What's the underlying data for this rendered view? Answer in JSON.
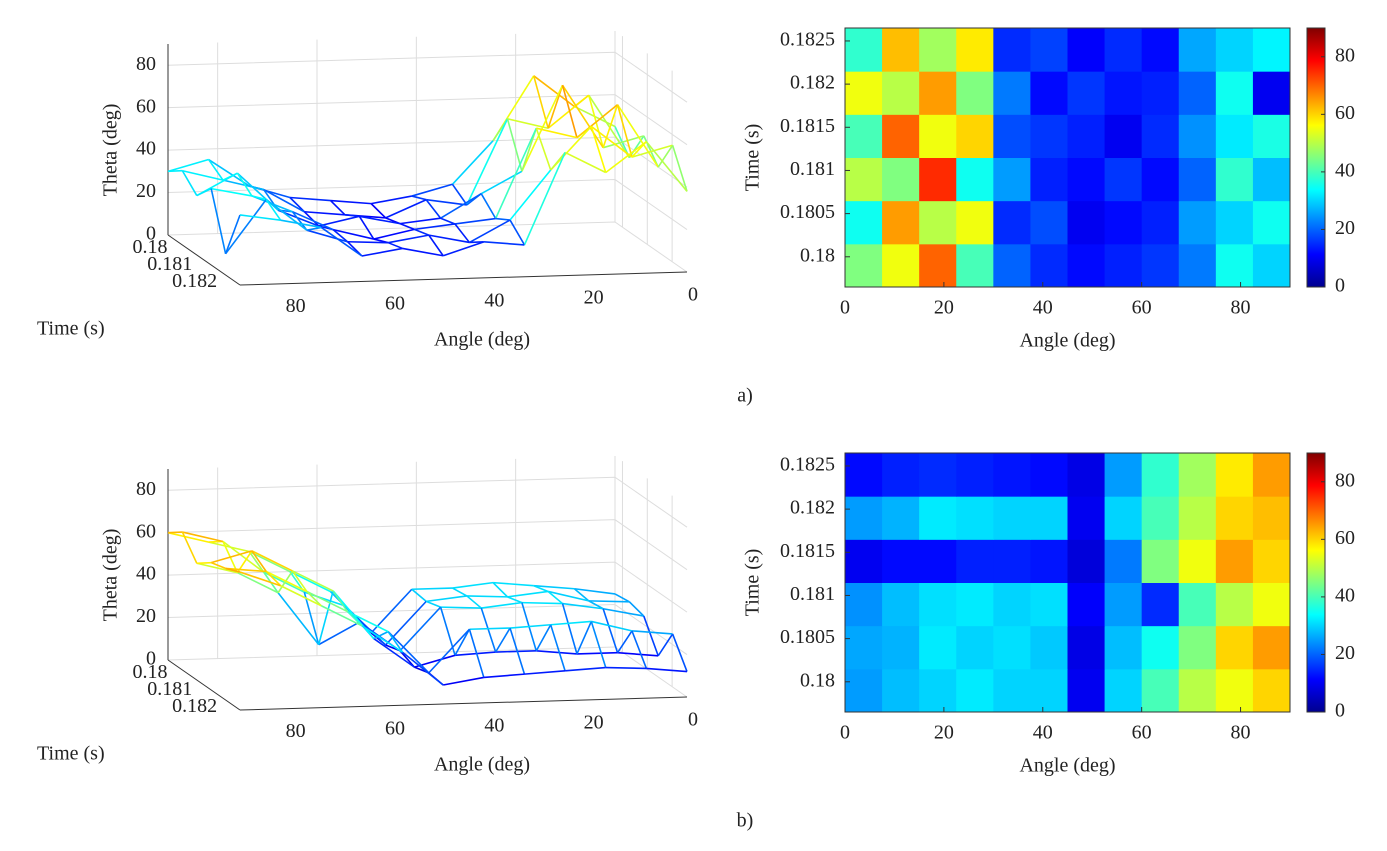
{
  "panel_labels": [
    "a)",
    "b)"
  ],
  "chart_data": [
    {
      "type": "surface",
      "xlabel": "Angle (deg)",
      "ylabel": "Time (s)",
      "zlabel": "Theta (deg)",
      "xlim": [
        0,
        90
      ],
      "xticks": [
        0,
        20,
        40,
        60,
        80
      ],
      "ylim": [
        0.1797,
        0.1826
      ],
      "yticks": [
        0.18,
        0.181,
        0.182
      ],
      "zlim": [
        0,
        90
      ],
      "zticks": [
        0,
        20,
        40,
        60,
        80
      ],
      "grid": true,
      "z": [
        [
          45,
          55,
          70,
          40,
          20,
          15,
          12,
          14,
          16,
          22,
          35,
          30
        ],
        [
          35,
          65,
          50,
          55,
          15,
          18,
          10,
          12,
          14,
          25,
          30,
          35
        ],
        [
          50,
          45,
          75,
          35,
          25,
          14,
          12,
          16,
          12,
          20,
          38,
          28
        ],
        [
          40,
          70,
          55,
          60,
          18,
          16,
          14,
          10,
          15,
          24,
          32,
          36
        ],
        [
          55,
          50,
          65,
          45,
          22,
          12,
          16,
          13,
          14,
          20,
          35,
          10
        ],
        [
          38,
          62,
          48,
          58,
          15,
          17,
          11,
          15,
          12,
          26,
          30,
          33
        ]
      ]
    },
    {
      "type": "heatmap",
      "xlabel": "Angle (deg)",
      "ylabel": "Time (s)",
      "xlim": [
        0,
        90
      ],
      "xticks": [
        0,
        20,
        40,
        60,
        80
      ],
      "ylim": [
        0.17965,
        0.18265
      ],
      "yticks": [
        0.18,
        0.1805,
        0.181,
        0.1815,
        0.182,
        0.1825
      ],
      "clim": [
        0,
        90
      ],
      "cticks": [
        0,
        20,
        40,
        60,
        80
      ],
      "z": [
        [
          45,
          55,
          70,
          40,
          20,
          15,
          12,
          14,
          16,
          22,
          35,
          30
        ],
        [
          35,
          65,
          50,
          55,
          15,
          18,
          10,
          12,
          14,
          25,
          30,
          35
        ],
        [
          50,
          45,
          75,
          35,
          25,
          14,
          12,
          16,
          12,
          20,
          38,
          28
        ],
        [
          40,
          70,
          55,
          60,
          18,
          16,
          14,
          10,
          15,
          24,
          32,
          36
        ],
        [
          55,
          50,
          65,
          45,
          22,
          12,
          16,
          13,
          14,
          20,
          35,
          10
        ],
        [
          38,
          62,
          48,
          58,
          15,
          17,
          11,
          15,
          12,
          26,
          30,
          33
        ]
      ]
    },
    {
      "type": "surface",
      "xlabel": "Angle (deg)",
      "ylabel": "Time (s)",
      "zlabel": "Theta (deg)",
      "xlim": [
        0,
        90
      ],
      "xticks": [
        0,
        20,
        40,
        60,
        80
      ],
      "ylim": [
        0.1797,
        0.1826
      ],
      "yticks": [
        0.18,
        0.181,
        0.182
      ],
      "zlim": [
        0,
        90
      ],
      "zticks": [
        0,
        20,
        40,
        60,
        80
      ],
      "grid": true,
      "z": [
        [
          25,
          28,
          30,
          32,
          30,
          30,
          10,
          30,
          40,
          50,
          55,
          60
        ],
        [
          26,
          27,
          32,
          30,
          31,
          29,
          9,
          28,
          35,
          45,
          60,
          65
        ],
        [
          24,
          28,
          31,
          32,
          30,
          31,
          11,
          25,
          15,
          40,
          50,
          55
        ],
        [
          10,
          12,
          12,
          14,
          14,
          13,
          8,
          22,
          45,
          55,
          65,
          60
        ],
        [
          25,
          27,
          32,
          31,
          30,
          30,
          10,
          30,
          40,
          50,
          60,
          62
        ],
        [
          12,
          14,
          15,
          14,
          13,
          12,
          9,
          25,
          38,
          48,
          58,
          65
        ]
      ]
    },
    {
      "type": "heatmap",
      "xlabel": "Angle (deg)",
      "ylabel": "Time (s)",
      "xlim": [
        0,
        90
      ],
      "xticks": [
        0,
        20,
        40,
        60,
        80
      ],
      "ylim": [
        0.17965,
        0.18265
      ],
      "yticks": [
        0.18,
        0.1805,
        0.181,
        0.1815,
        0.182,
        0.1825
      ],
      "clim": [
        0,
        90
      ],
      "cticks": [
        0,
        20,
        40,
        60,
        80
      ],
      "z": [
        [
          25,
          28,
          30,
          32,
          30,
          30,
          10,
          30,
          40,
          50,
          55,
          60
        ],
        [
          26,
          27,
          32,
          30,
          31,
          29,
          9,
          28,
          35,
          45,
          60,
          65
        ],
        [
          24,
          28,
          31,
          32,
          30,
          31,
          11,
          25,
          15,
          40,
          50,
          55
        ],
        [
          10,
          12,
          12,
          14,
          14,
          13,
          8,
          22,
          45,
          55,
          65,
          60
        ],
        [
          25,
          27,
          32,
          31,
          30,
          30,
          10,
          30,
          40,
          50,
          60,
          62
        ],
        [
          12,
          14,
          15,
          14,
          13,
          12,
          9,
          25,
          38,
          48,
          58,
          65
        ]
      ]
    }
  ]
}
